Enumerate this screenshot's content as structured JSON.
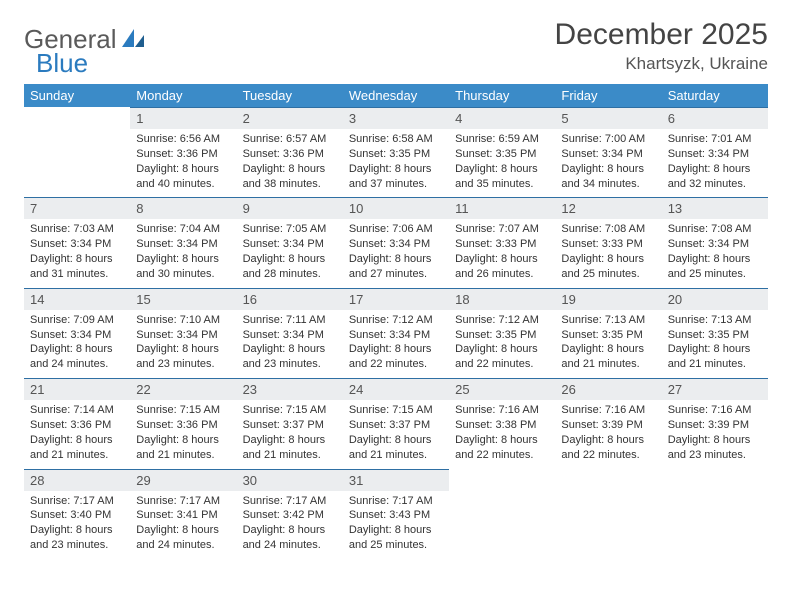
{
  "brand": {
    "part1": "General",
    "part2": "Blue"
  },
  "title": "December 2025",
  "location": "Khartsyzk, Ukraine",
  "colors": {
    "header_bg": "#3b8bc8",
    "header_text": "#ffffff",
    "daynum_bg": "#ebedef",
    "daynum_border": "#2e6fa3",
    "body_text": "#333333",
    "brand_gray": "#5a5a5a",
    "brand_blue": "#2b7bbf"
  },
  "day_labels": [
    "Sunday",
    "Monday",
    "Tuesday",
    "Wednesday",
    "Thursday",
    "Friday",
    "Saturday"
  ],
  "weeks": [
    [
      null,
      {
        "n": "1",
        "sr": "6:56 AM",
        "ss": "3:36 PM",
        "dl": "8 hours and 40 minutes."
      },
      {
        "n": "2",
        "sr": "6:57 AM",
        "ss": "3:36 PM",
        "dl": "8 hours and 38 minutes."
      },
      {
        "n": "3",
        "sr": "6:58 AM",
        "ss": "3:35 PM",
        "dl": "8 hours and 37 minutes."
      },
      {
        "n": "4",
        "sr": "6:59 AM",
        "ss": "3:35 PM",
        "dl": "8 hours and 35 minutes."
      },
      {
        "n": "5",
        "sr": "7:00 AM",
        "ss": "3:34 PM",
        "dl": "8 hours and 34 minutes."
      },
      {
        "n": "6",
        "sr": "7:01 AM",
        "ss": "3:34 PM",
        "dl": "8 hours and 32 minutes."
      }
    ],
    [
      {
        "n": "7",
        "sr": "7:03 AM",
        "ss": "3:34 PM",
        "dl": "8 hours and 31 minutes."
      },
      {
        "n": "8",
        "sr": "7:04 AM",
        "ss": "3:34 PM",
        "dl": "8 hours and 30 minutes."
      },
      {
        "n": "9",
        "sr": "7:05 AM",
        "ss": "3:34 PM",
        "dl": "8 hours and 28 minutes."
      },
      {
        "n": "10",
        "sr": "7:06 AM",
        "ss": "3:34 PM",
        "dl": "8 hours and 27 minutes."
      },
      {
        "n": "11",
        "sr": "7:07 AM",
        "ss": "3:33 PM",
        "dl": "8 hours and 26 minutes."
      },
      {
        "n": "12",
        "sr": "7:08 AM",
        "ss": "3:33 PM",
        "dl": "8 hours and 25 minutes."
      },
      {
        "n": "13",
        "sr": "7:08 AM",
        "ss": "3:34 PM",
        "dl": "8 hours and 25 minutes."
      }
    ],
    [
      {
        "n": "14",
        "sr": "7:09 AM",
        "ss": "3:34 PM",
        "dl": "8 hours and 24 minutes."
      },
      {
        "n": "15",
        "sr": "7:10 AM",
        "ss": "3:34 PM",
        "dl": "8 hours and 23 minutes."
      },
      {
        "n": "16",
        "sr": "7:11 AM",
        "ss": "3:34 PM",
        "dl": "8 hours and 23 minutes."
      },
      {
        "n": "17",
        "sr": "7:12 AM",
        "ss": "3:34 PM",
        "dl": "8 hours and 22 minutes."
      },
      {
        "n": "18",
        "sr": "7:12 AM",
        "ss": "3:35 PM",
        "dl": "8 hours and 22 minutes."
      },
      {
        "n": "19",
        "sr": "7:13 AM",
        "ss": "3:35 PM",
        "dl": "8 hours and 21 minutes."
      },
      {
        "n": "20",
        "sr": "7:13 AM",
        "ss": "3:35 PM",
        "dl": "8 hours and 21 minutes."
      }
    ],
    [
      {
        "n": "21",
        "sr": "7:14 AM",
        "ss": "3:36 PM",
        "dl": "8 hours and 21 minutes."
      },
      {
        "n": "22",
        "sr": "7:15 AM",
        "ss": "3:36 PM",
        "dl": "8 hours and 21 minutes."
      },
      {
        "n": "23",
        "sr": "7:15 AM",
        "ss": "3:37 PM",
        "dl": "8 hours and 21 minutes."
      },
      {
        "n": "24",
        "sr": "7:15 AM",
        "ss": "3:37 PM",
        "dl": "8 hours and 21 minutes."
      },
      {
        "n": "25",
        "sr": "7:16 AM",
        "ss": "3:38 PM",
        "dl": "8 hours and 22 minutes."
      },
      {
        "n": "26",
        "sr": "7:16 AM",
        "ss": "3:39 PM",
        "dl": "8 hours and 22 minutes."
      },
      {
        "n": "27",
        "sr": "7:16 AM",
        "ss": "3:39 PM",
        "dl": "8 hours and 23 minutes."
      }
    ],
    [
      {
        "n": "28",
        "sr": "7:17 AM",
        "ss": "3:40 PM",
        "dl": "8 hours and 23 minutes."
      },
      {
        "n": "29",
        "sr": "7:17 AM",
        "ss": "3:41 PM",
        "dl": "8 hours and 24 minutes."
      },
      {
        "n": "30",
        "sr": "7:17 AM",
        "ss": "3:42 PM",
        "dl": "8 hours and 24 minutes."
      },
      {
        "n": "31",
        "sr": "7:17 AM",
        "ss": "3:43 PM",
        "dl": "8 hours and 25 minutes."
      },
      null,
      null,
      null
    ]
  ],
  "labels": {
    "sunrise": "Sunrise: ",
    "sunset": "Sunset: ",
    "daylight": "Daylight: "
  }
}
